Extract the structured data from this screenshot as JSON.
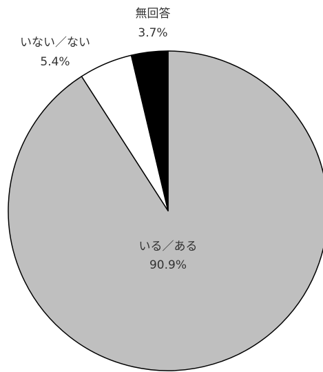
{
  "chart_data": {
    "type": "pie",
    "categories": [
      "いる／ある",
      "いない／ない",
      "無回答"
    ],
    "values": [
      90.9,
      5.4,
      3.7
    ],
    "value_labels": [
      "90.9%",
      "5.4%",
      "3.7%"
    ],
    "colors": [
      "#bfbfbf",
      "#ffffff",
      "#000000"
    ]
  }
}
